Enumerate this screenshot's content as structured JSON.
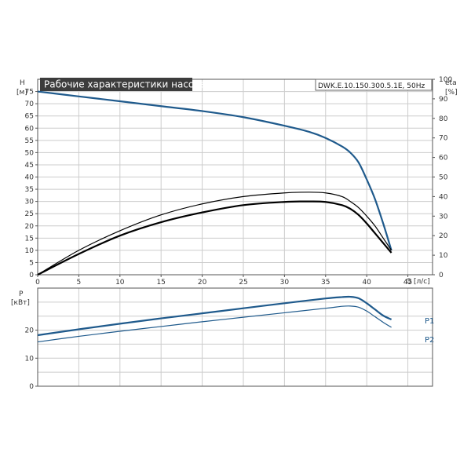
{
  "title": "Рабочие характеристики насоса",
  "model": "DWK.E.10.150.300.5.1E, 50Hz",
  "colors": {
    "accent": "#1f5a8c",
    "grid": "#cccccc",
    "title_bg": "#3c3c3c",
    "black": "#000000"
  },
  "top_chart": {
    "left_axis_label_line1": "H",
    "left_axis_label_line2": "[м]",
    "right_axis_label_line1": "eta",
    "right_axis_label_line2": "[%]",
    "x_axis_label": "Q",
    "x_axis_unit": "[л/с]"
  },
  "bottom_chart": {
    "y_axis_label_line1": "P",
    "y_axis_label_line2": "[кВт]"
  },
  "chart_data": [
    {
      "type": "line",
      "xlabel": "Q [л/с]",
      "ylabel": "H [м]",
      "y2label": "eta [%]",
      "xlim": [
        0,
        48
      ],
      "ylim": [
        0,
        80
      ],
      "y2lim": [
        0,
        100
      ],
      "x_ticks": [
        0,
        5,
        10,
        15,
        20,
        25,
        30,
        35,
        40,
        45
      ],
      "y_ticks": [
        0,
        5,
        10,
        15,
        20,
        25,
        30,
        35,
        40,
        45,
        50,
        55,
        60,
        65,
        70,
        75
      ],
      "y2_ticks": [
        0,
        10,
        20,
        30,
        40,
        50,
        60,
        70,
        80,
        90,
        100
      ],
      "grid": true,
      "series": [
        {
          "color": "#1f5a8c",
          "axis": "left",
          "x": [
            0,
            5,
            10,
            15,
            20,
            25,
            30,
            33,
            35,
            37,
            38,
            39,
            40,
            41,
            42,
            43
          ],
          "y": [
            75,
            73,
            71,
            69,
            67,
            64.5,
            61,
            58.5,
            56,
            52.5,
            50,
            46,
            39,
            31,
            21,
            10
          ]
        },
        {
          "color": "#000000",
          "axis": "left",
          "x": [
            0,
            5,
            10,
            15,
            20,
            25,
            30,
            33,
            35,
            37,
            38,
            39,
            40,
            41,
            42,
            43
          ],
          "y": [
            0,
            10,
            18,
            24.5,
            29,
            32,
            33.5,
            33.8,
            33.5,
            32,
            30,
            27.5,
            24,
            20,
            15,
            10
          ]
        },
        {
          "color": "#000000",
          "axis": "left",
          "x": [
            0,
            5,
            10,
            15,
            20,
            25,
            30,
            33,
            35,
            37,
            38,
            39,
            40,
            41,
            42,
            43
          ],
          "y": [
            0,
            8.5,
            16,
            21.5,
            25.5,
            28.5,
            29.8,
            30,
            29.8,
            28.5,
            27,
            24.5,
            21,
            17,
            13,
            9
          ]
        }
      ]
    },
    {
      "type": "line",
      "ylabel": "P [кВт]",
      "xlim": [
        0,
        48
      ],
      "ylim": [
        0,
        35
      ],
      "y_ticks": [
        0,
        10,
        20
      ],
      "grid": true,
      "series": [
        {
          "name": "P1",
          "color": "#1f5a8c",
          "x": [
            0,
            5,
            10,
            15,
            20,
            25,
            30,
            35,
            37,
            38,
            39,
            40,
            41,
            42,
            43
          ],
          "y": [
            18.2,
            20.3,
            22.3,
            24.2,
            26,
            27.8,
            29.6,
            31.3,
            31.8,
            31.9,
            31.4,
            29.6,
            27.4,
            25.2,
            23.8
          ]
        },
        {
          "name": "P2",
          "color": "#1f5a8c",
          "x": [
            0,
            5,
            10,
            15,
            20,
            25,
            30,
            35,
            37,
            38,
            39,
            40,
            41,
            42,
            43
          ],
          "y": [
            15.8,
            17.8,
            19.6,
            21.3,
            23,
            24.6,
            26.2,
            27.8,
            28.5,
            28.6,
            28.2,
            26.8,
            24.8,
            22.8,
            21
          ]
        }
      ]
    }
  ]
}
